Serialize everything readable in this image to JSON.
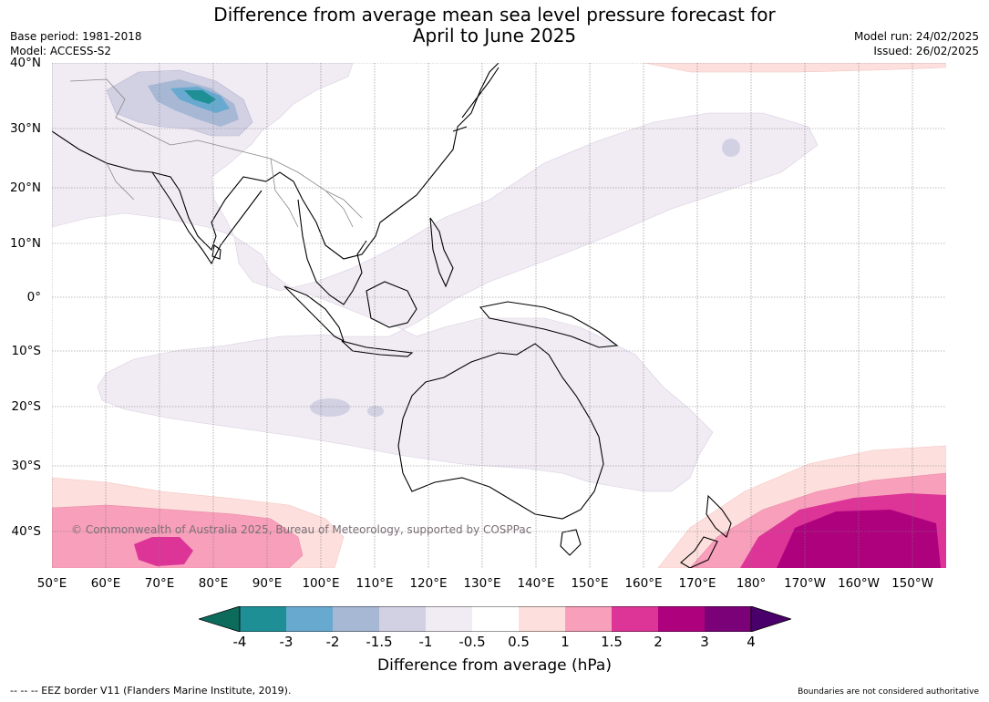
{
  "title_line1": "Difference from average mean sea level pressure forecast for",
  "title_line2": "April to June 2025",
  "base_period": "Base period: 1981-2018",
  "model": "Model: ACCESS-S2",
  "model_run": "Model run: 24/02/2025",
  "issued": "Issued: 26/02/2025",
  "copyright": "© Commonwealth of Australia 2025, Bureau of Meteorology, supported by COSPPac",
  "lat_ticks": [
    "40°N",
    "30°N",
    "20°N",
    "10°N",
    "0°",
    "10°S",
    "20°S",
    "30°S",
    "40°S"
  ],
  "lon_ticks": [
    "50°E",
    "60°E",
    "70°E",
    "80°E",
    "90°E",
    "100°E",
    "110°E",
    "120°E",
    "130°E",
    "140°E",
    "150°E",
    "160°E",
    "170°E",
    "180°",
    "170°W",
    "160°W",
    "150°W"
  ],
  "colorbar": {
    "label": "Difference from average (hPa)",
    "ticks": [
      "-4",
      "-3",
      "-2",
      "-1.5",
      "-1",
      "-0.5",
      "0.5",
      "1",
      "1.5",
      "2",
      "3",
      "4"
    ],
    "colors": {
      "below_-4": "#0d6b5c",
      "-4_-3": "#1f8f96",
      "-3_-2": "#67a9cf",
      "-2_-1.5": "#a6b8d4",
      "-1.5_-1": "#d2d0e3",
      "-1_-0.5": "#f1ebf4",
      "-0.5_0.5": "#ffffff",
      "0.5_1": "#fde0dd",
      "1_1.5": "#f89fbb",
      "1.5_2": "#dd3497",
      "2_3": "#ae017e",
      "3_4": "#7a0177",
      "above_4": "#49006a"
    }
  },
  "footer_left": "--  --  -- EEZ border V11 (Flanders Marine Institute, 2019).",
  "footer_right": "Boundaries are not considered authoritative"
}
